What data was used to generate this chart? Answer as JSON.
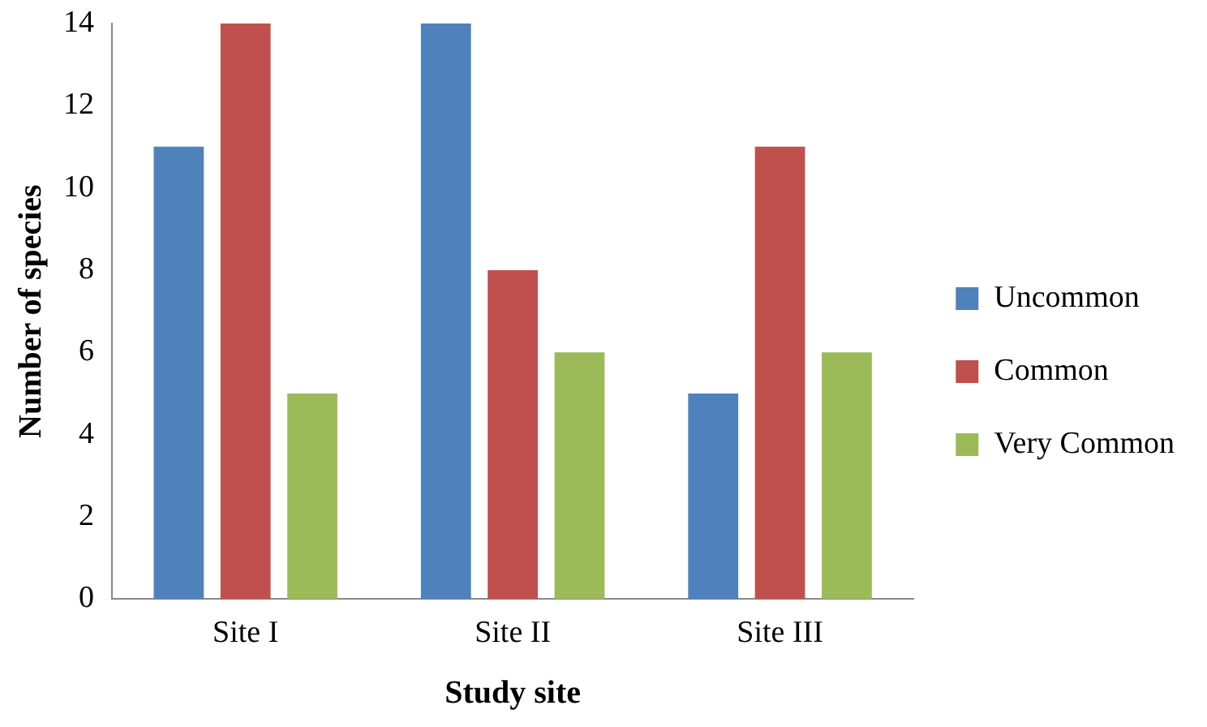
{
  "chart_data": {
    "type": "bar",
    "xlabel": "Study site",
    "ylabel": "Number of species",
    "categories": [
      "Site I",
      "Site II",
      "Site III"
    ],
    "series": [
      {
        "name": "Uncommon",
        "color": "#4f81bd",
        "values": [
          11,
          14,
          5
        ]
      },
      {
        "name": "Common",
        "color": "#c0504d",
        "values": [
          14,
          8,
          11
        ]
      },
      {
        "name": "Very Common",
        "color": "#9bbb59",
        "values": [
          5,
          6,
          6
        ]
      }
    ],
    "ylim": [
      0,
      14
    ],
    "yticks": [
      0,
      2,
      4,
      6,
      8,
      10,
      12,
      14
    ],
    "grid": false,
    "legend": "right"
  }
}
